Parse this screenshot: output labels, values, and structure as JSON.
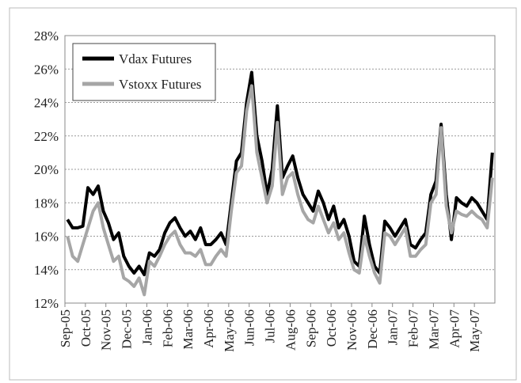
{
  "chart_data": {
    "type": "line",
    "categories": [
      "Sep-05",
      null,
      null,
      null,
      "Oct-05",
      null,
      null,
      null,
      "Nov-05",
      null,
      null,
      null,
      "Dec-05",
      null,
      null,
      null,
      "Jan-06",
      null,
      null,
      null,
      "Feb-06",
      null,
      null,
      null,
      "Mar-06",
      null,
      null,
      null,
      "Apr-06",
      null,
      null,
      null,
      "May-06",
      null,
      null,
      null,
      "Jun-06",
      null,
      null,
      null,
      "Jul-06",
      null,
      null,
      null,
      "Aug-06",
      null,
      null,
      null,
      "Sep-06",
      null,
      null,
      null,
      "Oct-06",
      null,
      null,
      null,
      "Nov-06",
      null,
      null,
      null,
      "Dec-06",
      null,
      null,
      null,
      "Jan-07",
      null,
      null,
      null,
      "Feb-07",
      null,
      null,
      null,
      "Mar-07",
      null,
      null,
      null,
      "Apr-07",
      null,
      null,
      null,
      "May-07",
      null,
      null,
      null
    ],
    "series": [
      {
        "name": "Vdax Futures",
        "color": "#000000",
        "values": [
          17,
          16.5,
          16.5,
          16.6,
          18.9,
          18.5,
          19,
          17.5,
          16.8,
          15.8,
          16.2,
          14.8,
          14.2,
          13.8,
          14.2,
          13.7,
          15,
          14.8,
          15.2,
          16.2,
          16.8,
          17.1,
          16.5,
          16,
          16.3,
          15.8,
          16.5,
          15.5,
          15.5,
          15.8,
          16.2,
          15.5,
          18,
          20.5,
          21,
          24,
          25.8,
          22,
          20.5,
          18.5,
          20,
          23.8,
          19.5,
          20.2,
          20.8,
          19.5,
          18.5,
          18,
          17.5,
          18.7,
          18,
          17,
          17.8,
          16.5,
          17,
          16,
          14.5,
          14.2,
          17.2,
          15.5,
          14.2,
          13.8,
          16.9,
          16.5,
          16,
          16.5,
          17,
          15.5,
          15.3,
          15.8,
          16.2,
          18.5,
          19.3,
          22.7,
          18.5,
          15.8,
          18.3,
          18,
          17.8,
          18.3,
          18,
          17.5,
          17,
          21
        ]
      },
      {
        "name": "Vstoxx Futures",
        "color": "#a6a6a6",
        "values": [
          16,
          14.8,
          14.5,
          15.5,
          16.5,
          17.5,
          18,
          16.5,
          15.5,
          14.5,
          14.8,
          13.5,
          13.3,
          13,
          13.5,
          12.5,
          14.5,
          14.2,
          14.8,
          15.5,
          16,
          16.3,
          15.5,
          15,
          15,
          14.8,
          15.2,
          14.3,
          14.3,
          14.8,
          15.2,
          14.8,
          17.5,
          19.8,
          20.2,
          23.5,
          25,
          21,
          19.5,
          18,
          19,
          22.8,
          18.5,
          19.5,
          19.8,
          18.5,
          17.5,
          17,
          16.8,
          17.8,
          17,
          16.2,
          16.8,
          15.8,
          16.2,
          15,
          14,
          13.8,
          16,
          14.8,
          13.8,
          13.2,
          16.2,
          16,
          15.5,
          16,
          16.5,
          14.8,
          14.8,
          15.2,
          15.5,
          18,
          18.5,
          22.5,
          17.8,
          16.2,
          17.5,
          17.3,
          17.2,
          17.5,
          17.2,
          17,
          16.5,
          19.5
        ]
      }
    ],
    "ylim": [
      12,
      28
    ],
    "yticks": [
      {
        "value": 12,
        "label": "12%"
      },
      {
        "value": 14,
        "label": "14%"
      },
      {
        "value": 16,
        "label": "16%"
      },
      {
        "value": 18,
        "label": "18%"
      },
      {
        "value": 20,
        "label": "20%"
      },
      {
        "value": 22,
        "label": "22%"
      },
      {
        "value": 24,
        "label": "24%"
      },
      {
        "value": 26,
        "label": "26%"
      },
      {
        "value": 28,
        "label": "28%"
      }
    ],
    "grid": true,
    "legend": "upper left"
  }
}
